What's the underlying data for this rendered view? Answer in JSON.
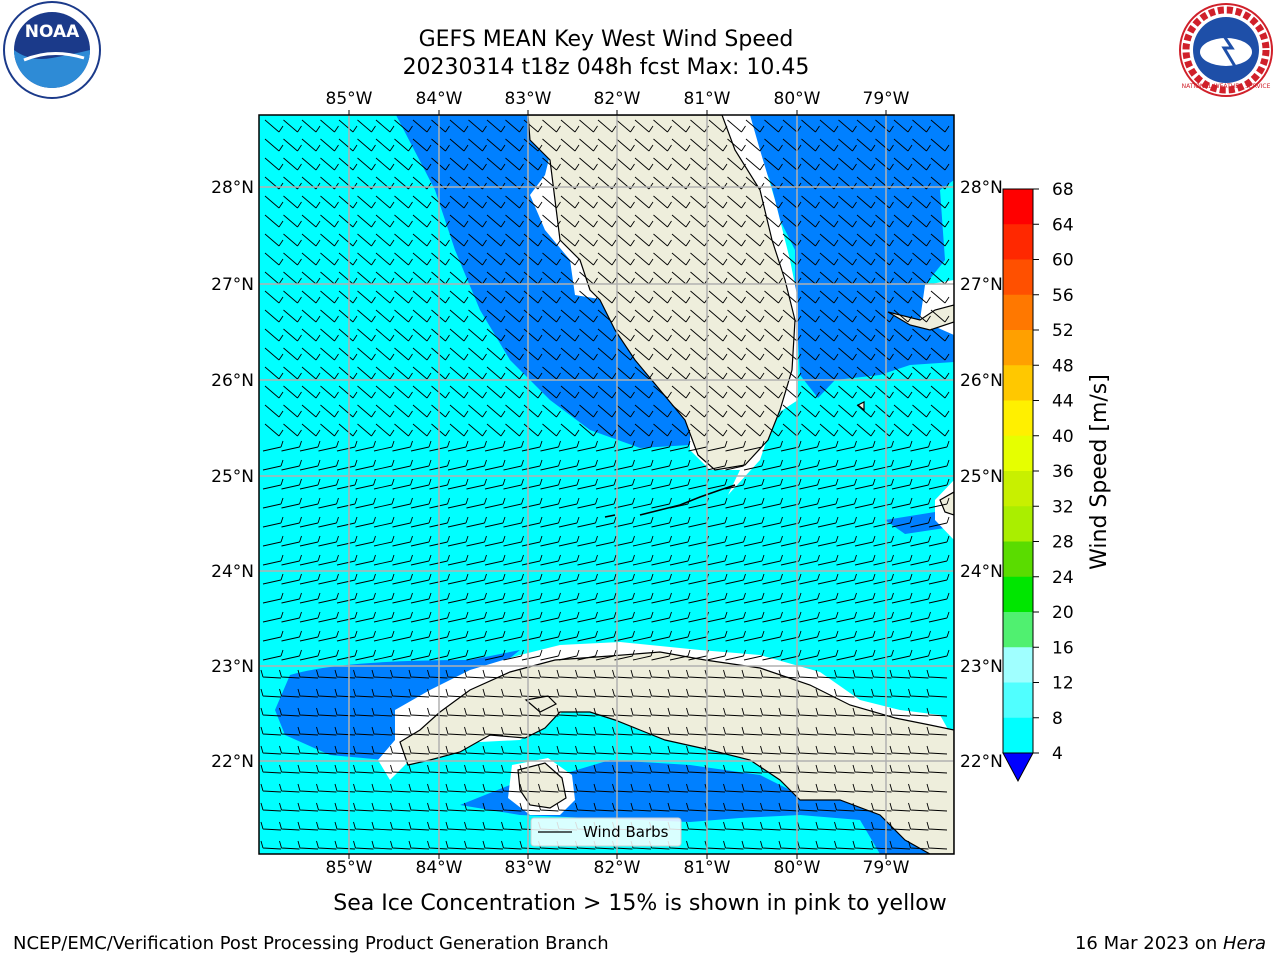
{
  "title_line1": "GEFS MEAN Key West Wind Speed",
  "title_line2": "20230314 t18z 048h fcst   Max: 10.45",
  "map": {
    "lon_labels": [
      "85°W",
      "84°W",
      "83°W",
      "82°W",
      "81°W",
      "80°W",
      "79°W"
    ],
    "lat_labels": [
      "28°N",
      "27°N",
      "26°N",
      "25°N",
      "24°N",
      "23°N",
      "22°N"
    ],
    "legend_label": "Wind Barbs",
    "colors": {
      "ocean_high": "#00ffff",
      "ocean_low": "#0080ff",
      "land": "#eeeedc",
      "grid": "#b0b0b0"
    }
  },
  "colorbar": {
    "label": "Wind Speed [m/s]",
    "ticks": [
      "68",
      "64",
      "60",
      "56",
      "52",
      "48",
      "44",
      "40",
      "36",
      "32",
      "28",
      "24",
      "20",
      "16",
      "12",
      "8",
      "4"
    ],
    "colors": [
      "#ff0000",
      "#ff2800",
      "#ff5000",
      "#ff7800",
      "#ffa000",
      "#ffc800",
      "#fff000",
      "#e6ff00",
      "#c8f000",
      "#aaee00",
      "#5adc00",
      "#00e600",
      "#50f070",
      "#a0ffff",
      "#50ffff",
      "#00ffff",
      "#0080ff",
      "#0000ff"
    ]
  },
  "sea_ice_note": "Sea Ice Concentration > 15% is shown in pink to yellow",
  "footer_left": "NCEP/EMC/Verification Post Processing Product Generation Branch",
  "footer_right_date": "16 Mar 2023 on ",
  "footer_right_machine": "Hera",
  "logo_noaa_text": "NOAA",
  "logo_nws_text": "NATIONAL WEATHER SERVICE"
}
